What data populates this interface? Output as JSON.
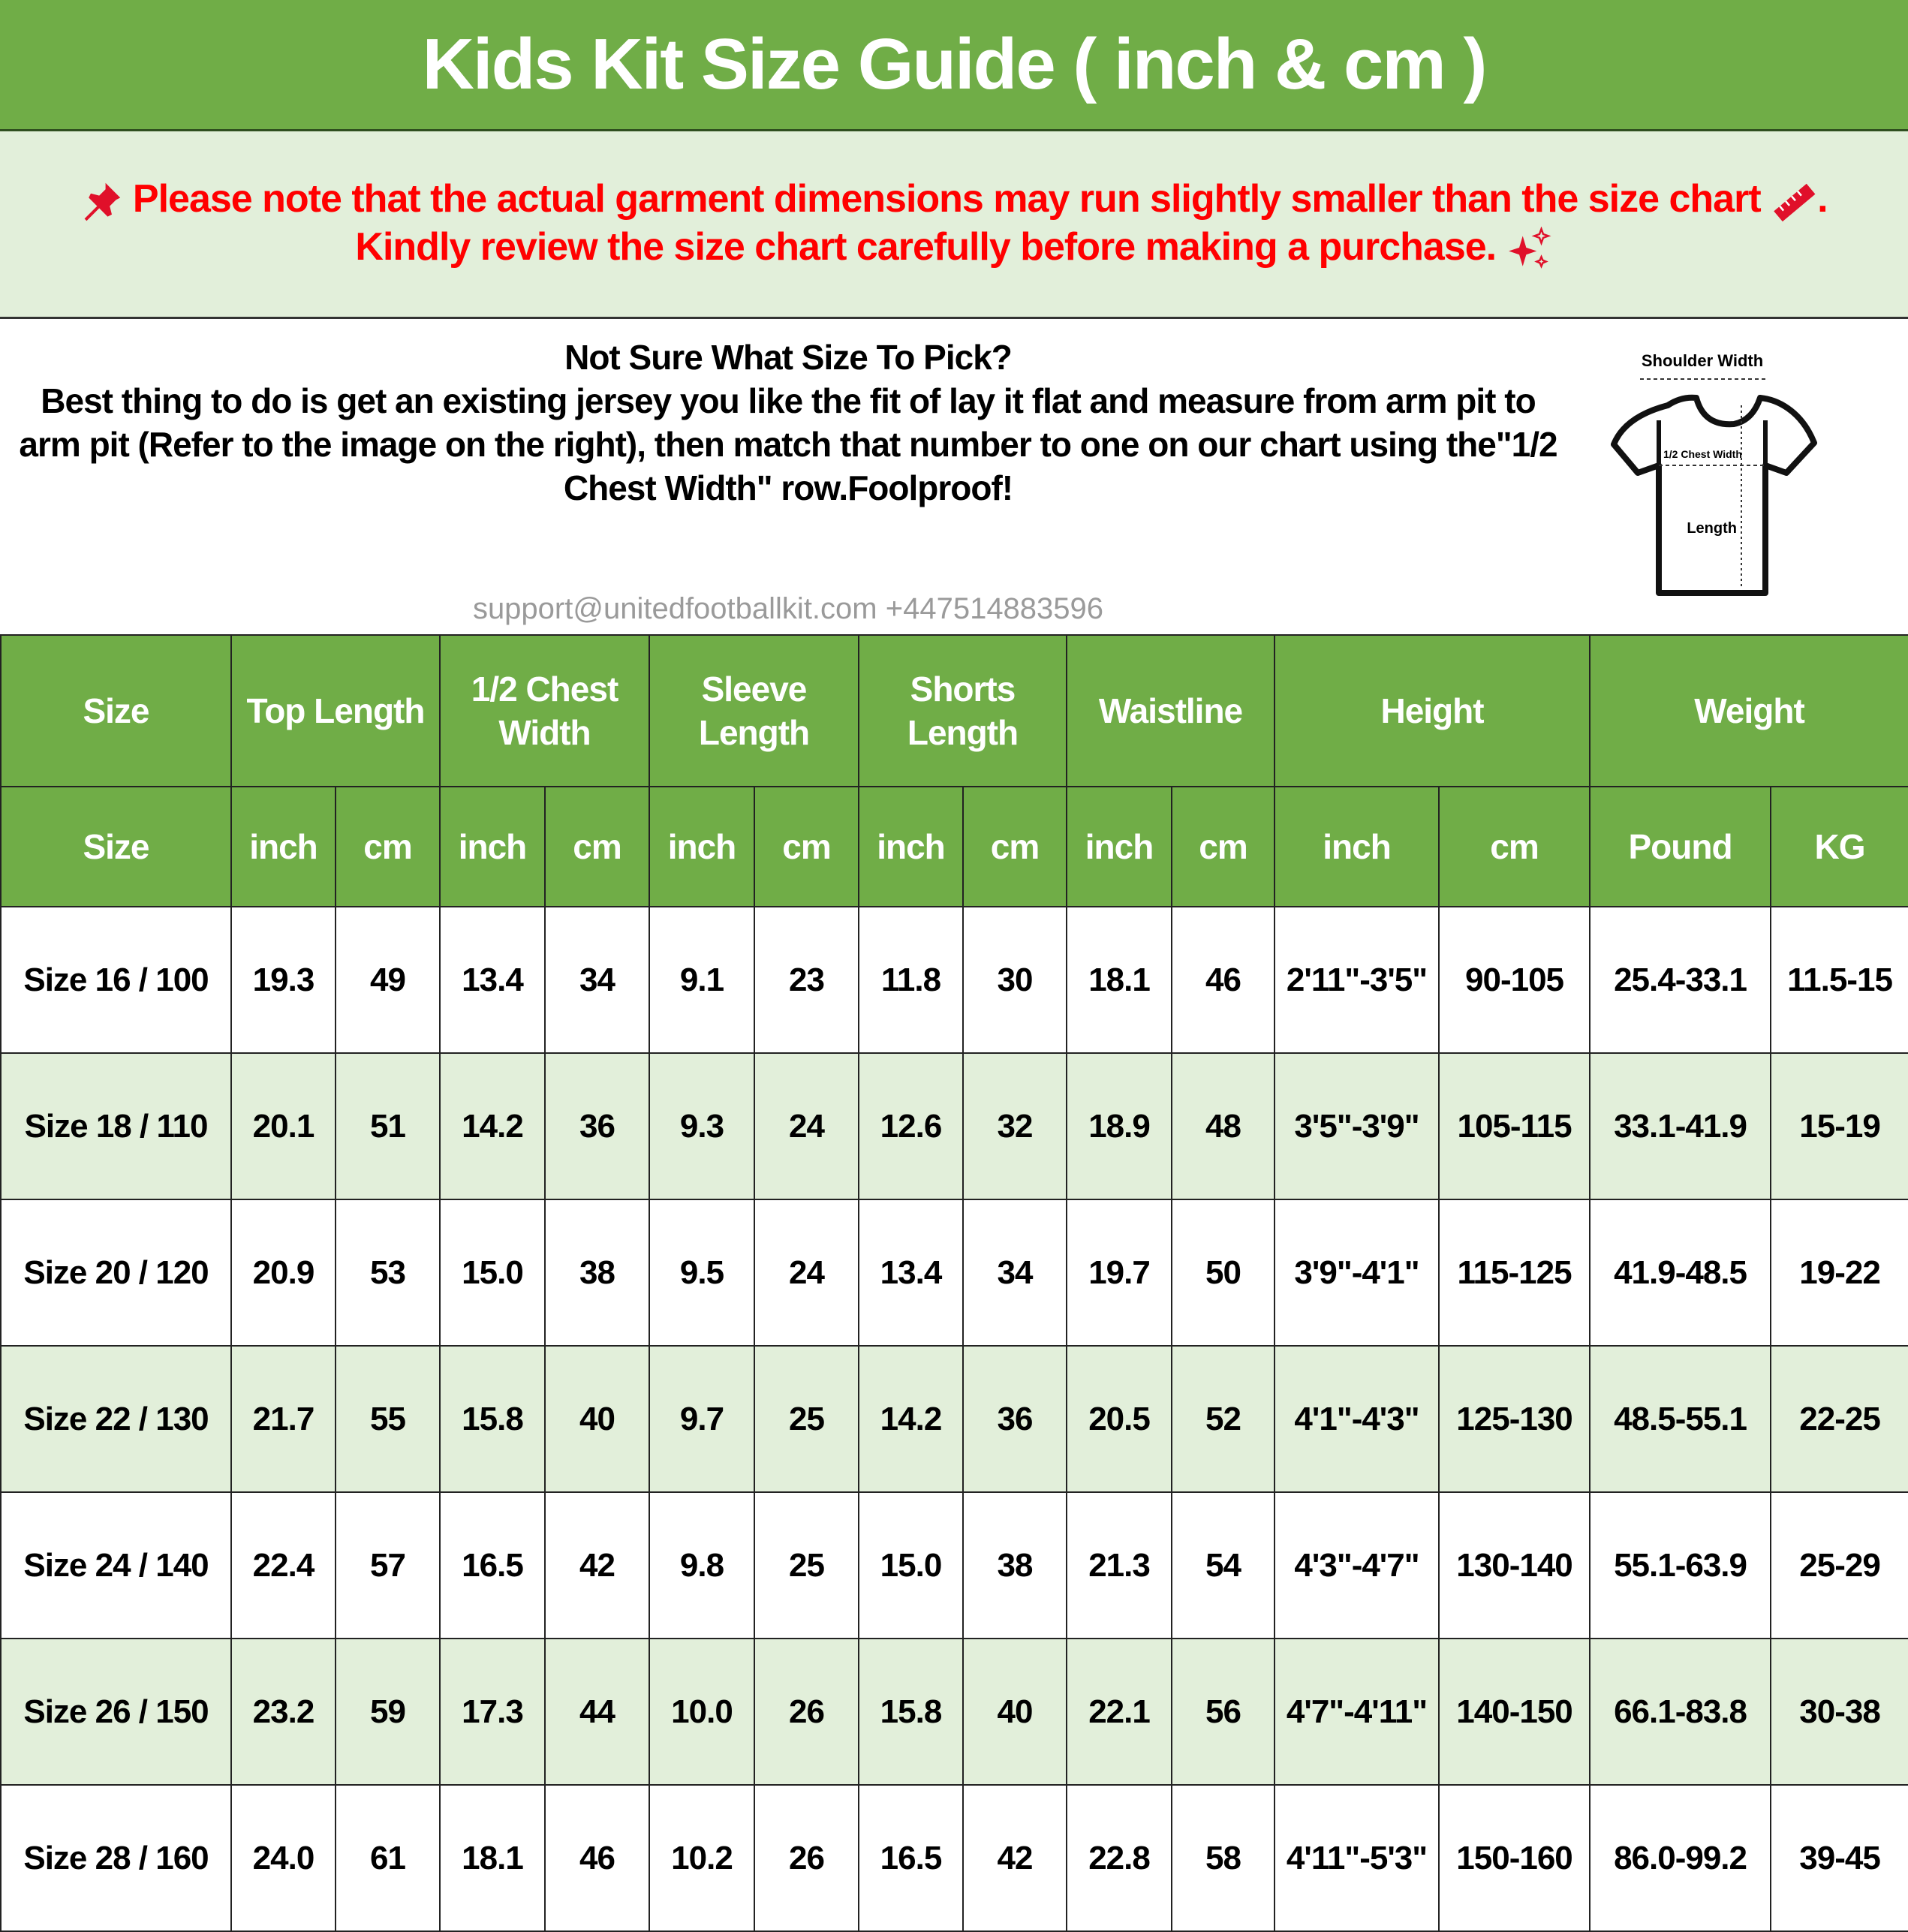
{
  "title": "Kids Kit Size Guide ( inch & cm )",
  "note": {
    "line1": "Please note that the actual garment dimensions may run slightly smaller than the size chart",
    "line1_end": ".",
    "line2": "Kindly review the size chart carefully before making a purchase.",
    "icons": [
      "pushpin-icon",
      "ruler-icon",
      "sparkles-icon"
    ]
  },
  "info": {
    "heading": "Not Sure What Size To Pick?",
    "lines": [
      "Best thing to do is get an existing jersey you like the fit of lay it flat and measure",
      "from arm pit to arm pit (Refer to the image on the right), then match that number",
      "to one on our chart using the\"1/2 Chest Width\" row.Foolproof!"
    ],
    "diagram": {
      "shoulder": "Shoulder Width",
      "chest": "1/2 Chest Width",
      "length": "Length"
    }
  },
  "table": {
    "groups": [
      "Size",
      "Top Length",
      "1/2 Chest Width",
      "Sleeve Length",
      "Shorts Length",
      "Waistline",
      "Height",
      "Weight"
    ],
    "units": [
      "Size",
      "inch",
      "cm",
      "inch",
      "cm",
      "inch",
      "cm",
      "inch",
      "cm",
      "inch",
      "cm",
      "inch",
      "cm",
      "Pound",
      "KG"
    ],
    "rows": [
      [
        "Size 16 / 100",
        "19.3",
        "49",
        "13.4",
        "34",
        "9.1",
        "23",
        "11.8",
        "30",
        "18.1",
        "46",
        "2'11\"-3'5\"",
        "90-105",
        "25.4-33.1",
        "11.5-15"
      ],
      [
        "Size 18 / 110",
        "20.1",
        "51",
        "14.2",
        "36",
        "9.3",
        "24",
        "12.6",
        "32",
        "18.9",
        "48",
        "3'5\"-3'9\"",
        "105-115",
        "33.1-41.9",
        "15-19"
      ],
      [
        "Size 20 / 120",
        "20.9",
        "53",
        "15.0",
        "38",
        "9.5",
        "24",
        "13.4",
        "34",
        "19.7",
        "50",
        "3'9\"-4'1\"",
        "115-125",
        "41.9-48.5",
        "19-22"
      ],
      [
        "Size 22 / 130",
        "21.7",
        "55",
        "15.8",
        "40",
        "9.7",
        "25",
        "14.2",
        "36",
        "20.5",
        "52",
        "4'1\"-4'3\"",
        "125-130",
        "48.5-55.1",
        "22-25"
      ],
      [
        "Size 24 / 140",
        "22.4",
        "57",
        "16.5",
        "42",
        "9.8",
        "25",
        "15.0",
        "38",
        "21.3",
        "54",
        "4'3\"-4'7\"",
        "130-140",
        "55.1-63.9",
        "25-29"
      ],
      [
        "Size 26 / 150",
        "23.2",
        "59",
        "17.3",
        "44",
        "10.0",
        "26",
        "15.8",
        "40",
        "22.1",
        "56",
        "4'7\"-4'11\"",
        "140-150",
        "66.1-83.8",
        "30-38"
      ],
      [
        "Size 28 / 160",
        "24.0",
        "61",
        "18.1",
        "46",
        "10.2",
        "26",
        "16.5",
        "42",
        "22.8",
        "58",
        "4'11\"-5'3\"",
        "150-160",
        "86.0-99.2",
        "39-45"
      ]
    ]
  },
  "watermark": "support@unitedfootballkit.com +447514883596",
  "colors": {
    "header_green": "#70ad47",
    "light_green": "#e2efda",
    "note_red": "#ff0000"
  }
}
